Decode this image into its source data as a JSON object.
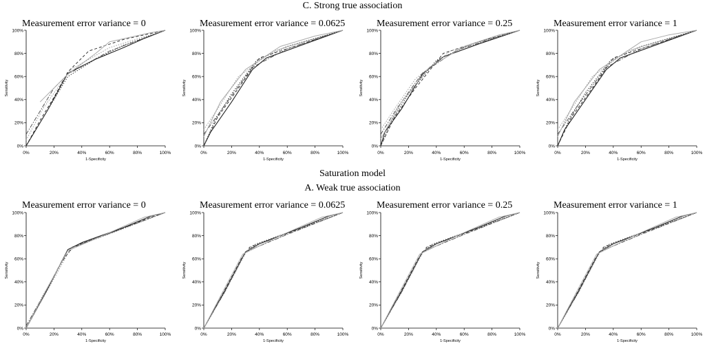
{
  "headings": {
    "top_section": "C. Strong true association",
    "middle_model": "Saturation model",
    "bottom_section": "A. Weak true association"
  },
  "chart_data": [
    {
      "type": "line",
      "section": "C. Strong true association",
      "title": "Measurement error variance = 0",
      "xlabel": "1-Specificity",
      "ylabel": "Sensitivity",
      "xticks": [
        "0%",
        "20%",
        "40%",
        "60%",
        "80%",
        "100%"
      ],
      "yticks": [
        "0%",
        "20%",
        "40%",
        "60%",
        "80%",
        "100%"
      ],
      "xlim": [
        0,
        100
      ],
      "ylim": [
        0,
        100
      ],
      "series": [
        {
          "style": "solid-dark",
          "x": [
            0,
            15,
            30,
            50,
            70,
            85,
            100
          ],
          "y": [
            0,
            30,
            63,
            75,
            85,
            93,
            100
          ]
        },
        {
          "style": "dash-dark",
          "x": [
            0,
            10,
            20,
            30,
            45,
            70,
            100
          ],
          "y": [
            0,
            22,
            42,
            64,
            82,
            92,
            100
          ]
        },
        {
          "style": "dot-dark",
          "x": [
            0,
            15,
            30,
            50,
            70,
            100
          ],
          "y": [
            0,
            30,
            60,
            75,
            87,
            100
          ]
        },
        {
          "style": "dashdot-dark",
          "x": [
            0,
            20,
            30,
            60,
            100
          ],
          "y": [
            10,
            50,
            62,
            82,
            100
          ]
        },
        {
          "style": "solid-light",
          "x": [
            10,
            30,
            50,
            60,
            90,
            100
          ],
          "y": [
            38,
            62,
            80,
            90,
            98,
            100
          ]
        },
        {
          "style": "dot-light",
          "x": [
            0,
            12,
            32,
            60,
            100
          ],
          "y": [
            5,
            32,
            66,
            85,
            100
          ]
        }
      ]
    },
    {
      "type": "line",
      "section": "C. Strong true association",
      "title": "Measurement error variance = 0.0625",
      "xlabel": "1-Specificity",
      "ylabel": "Sensitivity",
      "xticks": [
        "0%",
        "20%",
        "40%",
        "60%",
        "80%",
        "100%"
      ],
      "yticks": [
        "0%",
        "20%",
        "40%",
        "60%",
        "80%",
        "100%"
      ],
      "xlim": [
        0,
        100
      ],
      "ylim": [
        0,
        100
      ],
      "series": [
        {
          "style": "solid-dark",
          "x": [
            0,
            5,
            20,
            35,
            45,
            70,
            100
          ],
          "y": [
            0,
            12,
            38,
            66,
            76,
            87,
            100
          ]
        },
        {
          "style": "dash-dark",
          "x": [
            0,
            10,
            25,
            40,
            70,
            100
          ],
          "y": [
            0,
            25,
            50,
            76,
            88,
            100
          ]
        },
        {
          "style": "dot-dark",
          "x": [
            0,
            8,
            20,
            38,
            60,
            100
          ],
          "y": [
            0,
            22,
            45,
            74,
            86,
            100
          ]
        },
        {
          "style": "dashdot-dark",
          "x": [
            0,
            15,
            35,
            60,
            100
          ],
          "y": [
            10,
            35,
            68,
            84,
            100
          ]
        },
        {
          "style": "solid-light",
          "x": [
            0,
            12,
            30,
            55,
            80,
            100
          ],
          "y": [
            8,
            38,
            66,
            86,
            95,
            100
          ]
        },
        {
          "style": "dot-light",
          "x": [
            0,
            10,
            25,
            50,
            100
          ],
          "y": [
            14,
            32,
            60,
            82,
            100
          ]
        }
      ]
    },
    {
      "type": "line",
      "section": "C. Strong true association",
      "title": "Measurement error variance = 0.25",
      "xlabel": "1-Specificity",
      "ylabel": "Sensitivity",
      "xticks": [
        "0%",
        "20%",
        "40%",
        "60%",
        "80%",
        "100%"
      ],
      "yticks": [
        "0%",
        "20%",
        "40%",
        "60%",
        "80%",
        "100%"
      ],
      "xlim": [
        0,
        100
      ],
      "ylim": [
        0,
        100
      ],
      "series": [
        {
          "style": "solid-dark",
          "x": [
            0,
            3,
            15,
            30,
            45,
            70,
            100
          ],
          "y": [
            0,
            12,
            32,
            62,
            77,
            88,
            100
          ]
        },
        {
          "style": "dash-dark",
          "x": [
            0,
            10,
            25,
            45,
            70,
            100
          ],
          "y": [
            0,
            25,
            50,
            80,
            90,
            100
          ]
        },
        {
          "style": "dot-dark",
          "x": [
            0,
            8,
            20,
            40,
            65,
            100
          ],
          "y": [
            0,
            22,
            45,
            74,
            88,
            100
          ]
        },
        {
          "style": "dashdot-dark",
          "x": [
            0,
            12,
            30,
            55,
            100
          ],
          "y": [
            10,
            33,
            63,
            83,
            100
          ]
        },
        {
          "style": "solid-light",
          "x": [
            0,
            15,
            35,
            60,
            85,
            100
          ],
          "y": [
            6,
            38,
            68,
            86,
            96,
            100
          ]
        },
        {
          "style": "dot-light",
          "x": [
            0,
            10,
            25,
            50,
            100
          ],
          "y": [
            14,
            32,
            58,
            82,
            100
          ]
        }
      ]
    },
    {
      "type": "line",
      "section": "C. Strong true association",
      "title": "Measurement error variance = 1",
      "xlabel": "1-Specificity",
      "ylabel": "Sensitivity",
      "xticks": [
        "0%",
        "20%",
        "40%",
        "60%",
        "80%",
        "100%"
      ],
      "yticks": [
        "0%",
        "20%",
        "40%",
        "60%",
        "80%",
        "100%"
      ],
      "xlim": [
        0,
        100
      ],
      "ylim": [
        0,
        100
      ],
      "series": [
        {
          "style": "solid-dark",
          "x": [
            0,
            5,
            20,
            35,
            45,
            70,
            100
          ],
          "y": [
            0,
            14,
            40,
            66,
            76,
            87,
            100
          ]
        },
        {
          "style": "dash-dark",
          "x": [
            0,
            10,
            25,
            40,
            70,
            100
          ],
          "y": [
            0,
            25,
            50,
            76,
            88,
            100
          ]
        },
        {
          "style": "dot-dark",
          "x": [
            0,
            8,
            20,
            38,
            60,
            100
          ],
          "y": [
            0,
            22,
            46,
            74,
            86,
            100
          ]
        },
        {
          "style": "dashdot-dark",
          "x": [
            0,
            15,
            35,
            60,
            100
          ],
          "y": [
            10,
            36,
            68,
            84,
            100
          ]
        },
        {
          "style": "solid-light",
          "x": [
            0,
            12,
            30,
            60,
            80,
            100
          ],
          "y": [
            8,
            38,
            66,
            90,
            96,
            100
          ]
        },
        {
          "style": "dot-light",
          "x": [
            0,
            10,
            25,
            50,
            100
          ],
          "y": [
            14,
            32,
            60,
            82,
            100
          ]
        }
      ]
    },
    {
      "type": "line",
      "section": "A. Weak true association",
      "title": "Measurement error variance = 0",
      "xlabel": "1-Specificity",
      "ylabel": "Sensitivity",
      "xticks": [
        "0%",
        "20%",
        "40%",
        "60%",
        "80%",
        "100%"
      ],
      "yticks": [
        "0%",
        "20%",
        "40%",
        "60%",
        "80%",
        "100%"
      ],
      "xlim": [
        0,
        100
      ],
      "ylim": [
        0,
        100
      ],
      "series": [
        {
          "style": "solid-dark",
          "x": [
            0,
            15,
            30,
            40,
            70,
            90,
            100
          ],
          "y": [
            0,
            33,
            68,
            74,
            87,
            97,
            100
          ]
        },
        {
          "style": "dash-dark",
          "x": [
            0,
            10,
            25,
            33,
            60,
            90,
            100
          ],
          "y": [
            0,
            22,
            56,
            70,
            82,
            96,
            100
          ]
        },
        {
          "style": "dot-dark",
          "x": [
            0,
            12,
            28,
            35,
            65,
            100
          ],
          "y": [
            0,
            28,
            62,
            71,
            84,
            100
          ]
        },
        {
          "style": "dashdot-dark",
          "x": [
            0,
            15,
            30,
            60,
            100
          ],
          "y": [
            2,
            34,
            68,
            82,
            100
          ]
        },
        {
          "style": "solid-light",
          "x": [
            0,
            14,
            30,
            55,
            85,
            100
          ],
          "y": [
            0,
            32,
            67,
            80,
            96,
            100
          ]
        },
        {
          "style": "dot-light",
          "x": [
            0,
            16,
            32,
            70,
            100
          ],
          "y": [
            0,
            34,
            69,
            86,
            100
          ]
        }
      ]
    },
    {
      "type": "line",
      "section": "A. Weak true association",
      "title": "Measurement error variance = 0.0625",
      "xlabel": "1-Specificity",
      "ylabel": "Sensitivity",
      "xticks": [
        "0%",
        "20%",
        "40%",
        "60%",
        "80%",
        "100%"
      ],
      "yticks": [
        "0%",
        "20%",
        "40%",
        "60%",
        "80%",
        "100%"
      ],
      "xlim": [
        0,
        100
      ],
      "ylim": [
        0,
        100
      ],
      "series": [
        {
          "style": "solid-dark",
          "x": [
            0,
            15,
            30,
            40,
            70,
            90,
            100
          ],
          "y": [
            0,
            32,
            66,
            73,
            87,
            97,
            100
          ]
        },
        {
          "style": "dash-dark",
          "x": [
            0,
            12,
            27,
            33,
            65,
            100
          ],
          "y": [
            0,
            26,
            60,
            70,
            84,
            100
          ]
        },
        {
          "style": "dot-dark",
          "x": [
            0,
            14,
            29,
            36,
            68,
            100
          ],
          "y": [
            0,
            30,
            64,
            72,
            86,
            100
          ]
        },
        {
          "style": "dashdot-dark",
          "x": [
            0,
            15,
            30,
            60,
            100
          ],
          "y": [
            0,
            31,
            66,
            81,
            100
          ]
        },
        {
          "style": "solid-light",
          "x": [
            0,
            13,
            28,
            55,
            85,
            100
          ],
          "y": [
            0,
            30,
            64,
            80,
            96,
            100
          ]
        },
        {
          "style": "dot-light",
          "x": [
            0,
            16,
            31,
            70,
            100
          ],
          "y": [
            0,
            33,
            67,
            86,
            100
          ]
        }
      ]
    },
    {
      "type": "line",
      "section": "A. Weak true association",
      "title": "Measurement error variance = 0.25",
      "xlabel": "1-Specificity",
      "ylabel": "Sensitivity",
      "xticks": [
        "0%",
        "20%",
        "40%",
        "60%",
        "80%",
        "100%"
      ],
      "yticks": [
        "0%",
        "20%",
        "40%",
        "60%",
        "80%",
        "100%"
      ],
      "xlim": [
        0,
        100
      ],
      "ylim": [
        0,
        100
      ],
      "series": [
        {
          "style": "solid-dark",
          "x": [
            0,
            15,
            30,
            40,
            70,
            90,
            100
          ],
          "y": [
            0,
            32,
            66,
            73,
            87,
            97,
            100
          ]
        },
        {
          "style": "dash-dark",
          "x": [
            0,
            12,
            27,
            33,
            65,
            100
          ],
          "y": [
            0,
            26,
            60,
            70,
            84,
            100
          ]
        },
        {
          "style": "dot-dark",
          "x": [
            0,
            14,
            29,
            36,
            68,
            100
          ],
          "y": [
            0,
            30,
            64,
            72,
            86,
            100
          ]
        },
        {
          "style": "dashdot-dark",
          "x": [
            0,
            15,
            30,
            60,
            100
          ],
          "y": [
            0,
            31,
            66,
            81,
            100
          ]
        },
        {
          "style": "solid-light",
          "x": [
            0,
            13,
            28,
            55,
            85,
            100
          ],
          "y": [
            0,
            30,
            64,
            80,
            96,
            100
          ]
        },
        {
          "style": "dot-light",
          "x": [
            0,
            16,
            31,
            70,
            100
          ],
          "y": [
            0,
            33,
            67,
            86,
            100
          ]
        }
      ]
    },
    {
      "type": "line",
      "section": "A. Weak true association",
      "title": "Measurement error variance = 1",
      "xlabel": "1-Specificity",
      "ylabel": "Sensitivity",
      "xticks": [
        "0%",
        "20%",
        "40%",
        "60%",
        "80%",
        "100%"
      ],
      "yticks": [
        "0%",
        "20%",
        "40%",
        "60%",
        "80%",
        "100%"
      ],
      "xlim": [
        0,
        100
      ],
      "ylim": [
        0,
        100
      ],
      "series": [
        {
          "style": "solid-dark",
          "x": [
            0,
            15,
            30,
            40,
            70,
            90,
            100
          ],
          "y": [
            0,
            32,
            66,
            73,
            87,
            97,
            100
          ]
        },
        {
          "style": "dash-dark",
          "x": [
            0,
            12,
            27,
            33,
            65,
            100
          ],
          "y": [
            0,
            26,
            60,
            70,
            84,
            100
          ]
        },
        {
          "style": "dot-dark",
          "x": [
            0,
            14,
            29,
            36,
            68,
            100
          ],
          "y": [
            0,
            30,
            64,
            72,
            86,
            100
          ]
        },
        {
          "style": "dashdot-dark",
          "x": [
            0,
            15,
            30,
            60,
            100
          ],
          "y": [
            0,
            31,
            66,
            81,
            100
          ]
        },
        {
          "style": "solid-light",
          "x": [
            0,
            13,
            28,
            55,
            85,
            100
          ],
          "y": [
            0,
            30,
            64,
            80,
            96,
            100
          ]
        },
        {
          "style": "dot-light",
          "x": [
            0,
            16,
            31,
            70,
            100
          ],
          "y": [
            0,
            33,
            67,
            86,
            100
          ]
        }
      ]
    }
  ]
}
